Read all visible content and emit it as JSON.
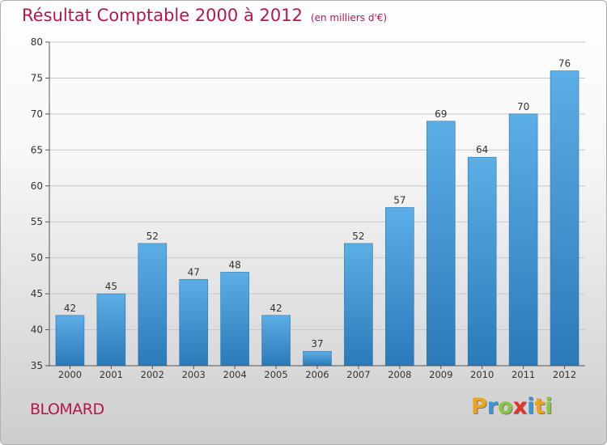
{
  "header": {
    "title": "Résultat Comptable 2000 à 2012",
    "unit": "(en milliers d'€)"
  },
  "footer": {
    "town": "BLOMARD",
    "logo_letters": [
      "P",
      "r",
      "o",
      "x",
      "i",
      "t",
      "i"
    ]
  },
  "colors": {
    "title": "#b5174b",
    "bar_top": "#5caee6",
    "bar_bottom": "#2a7ab8",
    "logo": [
      "#f0a21a",
      "#3b94d9",
      "#8cc63f",
      "#e5332a",
      "#3b94d9",
      "#f0a21a",
      "#8cc63f"
    ]
  },
  "chart_data": {
    "type": "bar",
    "title": "Résultat Comptable 2000 à 2012",
    "subtitle": "(en milliers d'€)",
    "xlabel": "",
    "ylabel": "",
    "categories": [
      "2000",
      "2001",
      "2002",
      "2003",
      "2004",
      "2005",
      "2006",
      "2007",
      "2008",
      "2009",
      "2010",
      "2011",
      "2012"
    ],
    "values": [
      42,
      45,
      52,
      47,
      48,
      42,
      37,
      52,
      57,
      69,
      64,
      70,
      76
    ],
    "ylim": [
      35,
      80
    ],
    "yticks": [
      35,
      40,
      45,
      50,
      55,
      60,
      65,
      70,
      75,
      80
    ],
    "grid": true
  }
}
